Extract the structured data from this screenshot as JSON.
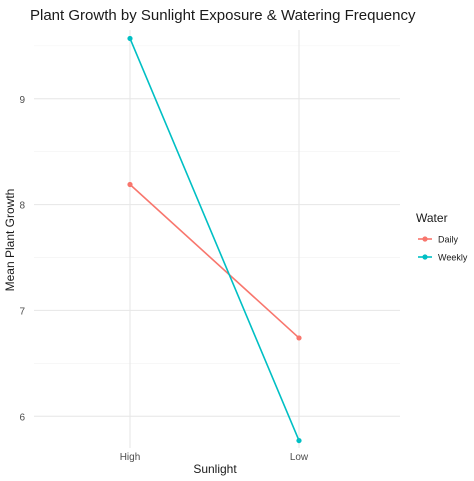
{
  "chart_data": {
    "type": "line",
    "title": "Plant Growth by Sunlight Exposure & Watering Frequency",
    "xlabel": "Sunlight",
    "ylabel": "Mean Plant Growth",
    "categories": [
      "High",
      "Low"
    ],
    "ylim": [
      5.7,
      9.65
    ],
    "yticks": [
      6,
      7,
      8,
      9
    ],
    "grid": true,
    "legend": {
      "title": "Water",
      "placement": "right"
    },
    "series": [
      {
        "name": "Daily",
        "color": "#F8766D",
        "values": [
          8.19,
          6.74
        ]
      },
      {
        "name": "Weekly",
        "color": "#00BFC4",
        "values": [
          9.57,
          5.77
        ]
      }
    ]
  }
}
